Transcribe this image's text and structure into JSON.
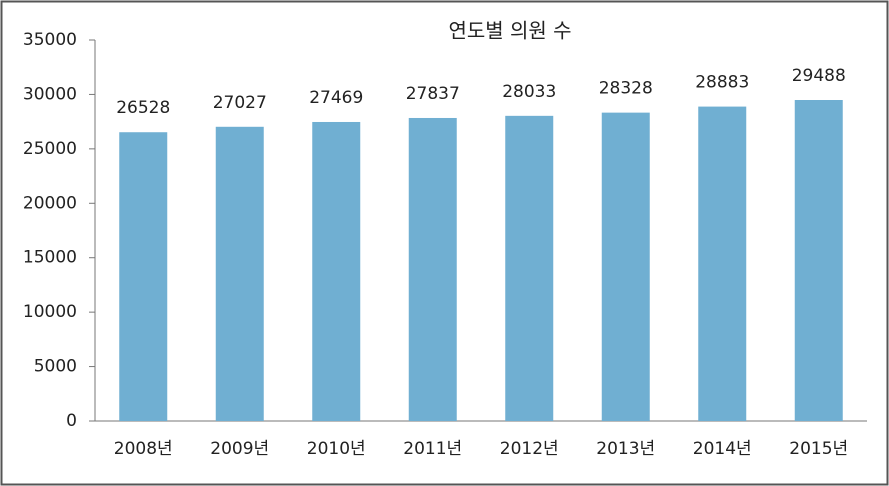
{
  "chart_data": {
    "type": "bar",
    "title": "연도별 의원 수",
    "categories": [
      "2008년",
      "2009년",
      "2010년",
      "2011년",
      "2012년",
      "2013년",
      "2014년",
      "2015년"
    ],
    "values": [
      26528,
      27027,
      27469,
      27837,
      28033,
      28328,
      28883,
      29488
    ],
    "color": "#70afd2",
    "ylim": [
      0,
      35000
    ],
    "yticks": [
      0,
      5000,
      10000,
      15000,
      20000,
      25000,
      30000,
      35000
    ]
  }
}
